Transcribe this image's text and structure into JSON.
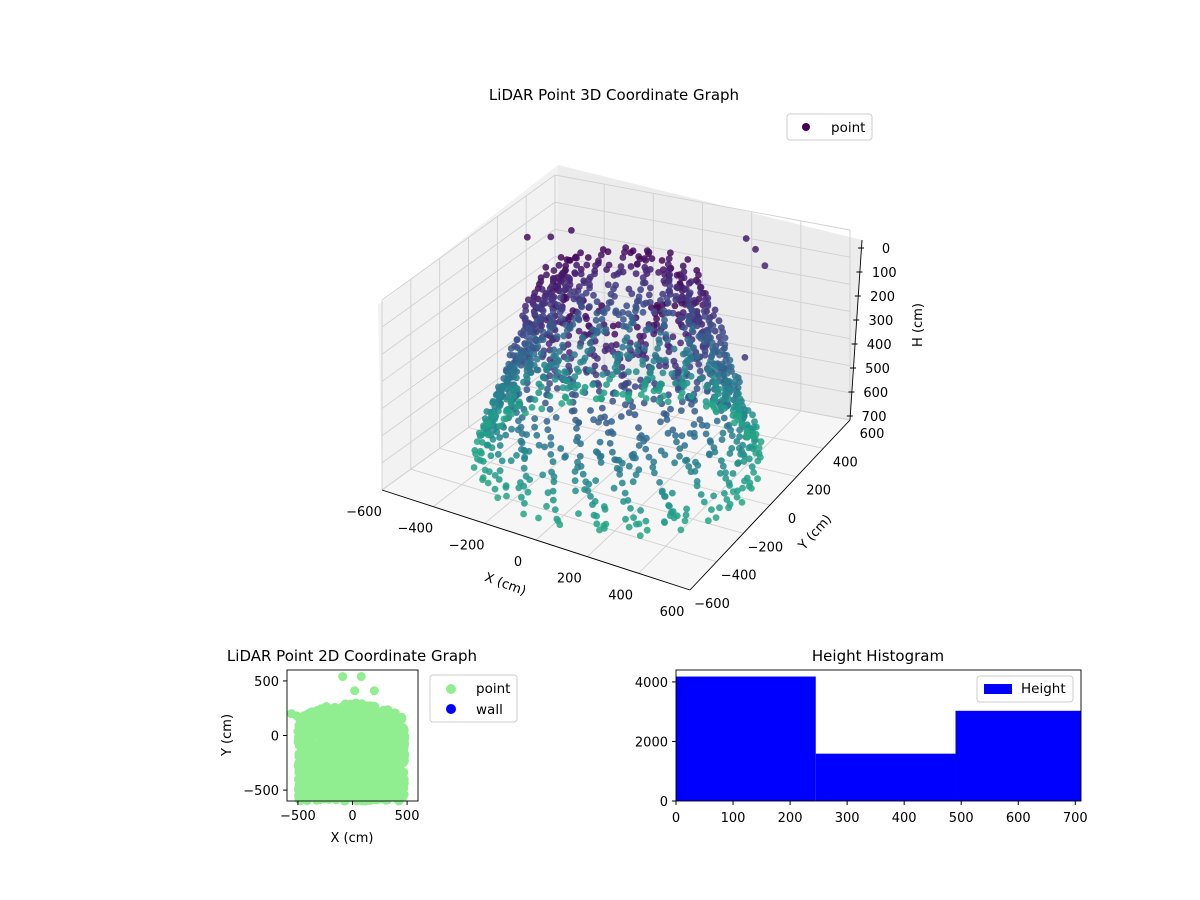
{
  "chart_data": [
    {
      "type": "scatter3d",
      "title": "LiDAR Point 3D Coordinate Graph",
      "xlabel": "X (cm)",
      "ylabel": "Y (cm)",
      "zlabel": "H (cm)",
      "xlim": [
        -600,
        600
      ],
      "ylim": [
        -600,
        600
      ],
      "zlim": [
        700,
        0
      ],
      "x_ticks": [
        "−600",
        "−400",
        "−200",
        "0",
        "200",
        "400",
        "600"
      ],
      "y_ticks": [
        "−600",
        "−400",
        "−200",
        "0",
        "200",
        "400",
        "600"
      ],
      "z_ticks": [
        "0",
        "100",
        "200",
        "300",
        "400",
        "500",
        "600",
        "700"
      ],
      "legend": {
        "entries": [
          {
            "label": "point",
            "color": "#440154"
          }
        ],
        "placement": "upper-right"
      },
      "colormap": "viridis",
      "grid": true,
      "series": [
        {
          "name": "point",
          "description_shape": "dense ring of points forming a dome-like wall around the origin, radius ~500 cm, heights 0-700 cm",
          "points": [
            [
              -480,
              200,
              50
            ],
            [
              -420,
              260,
              60
            ],
            [
              -360,
              300,
              40
            ],
            [
              200,
              560,
              80
            ],
            [
              260,
              520,
              90
            ],
            [
              320,
              480,
              120
            ],
            [
              500,
              0,
              180
            ]
          ]
        }
      ]
    },
    {
      "type": "scatter",
      "title": "LiDAR Point 2D Coordinate Graph",
      "xlabel": "X (cm)",
      "ylabel": "Y (cm)",
      "xlim": [
        -600,
        600
      ],
      "ylim": [
        -600,
        600
      ],
      "x_ticks": [
        "−500",
        "0",
        "500"
      ],
      "y_ticks": [
        "−500",
        "0",
        "500"
      ],
      "legend": {
        "entries": [
          {
            "label": "point",
            "color": "#90ee90"
          },
          {
            "label": "wall",
            "color": "#0000ff"
          }
        ],
        "placement": "outside-right"
      },
      "series": [
        {
          "name": "point",
          "color": "#90ee90",
          "description_shape": "filled region spanning x -500..500, y -600..300 with a rounded top",
          "points": [
            [
              -90,
              540
            ],
            [
              80,
              540
            ],
            [
              20,
              410
            ],
            [
              200,
              410
            ],
            [
              -560,
              200
            ],
            [
              -510,
              180
            ]
          ]
        },
        {
          "name": "wall",
          "color": "#0000ff",
          "points": []
        }
      ]
    },
    {
      "type": "bar",
      "title": "Height Histogram",
      "xlim": [
        0,
        710
      ],
      "ylim": [
        0,
        4400
      ],
      "x_ticks": [
        "0",
        "100",
        "200",
        "300",
        "400",
        "500",
        "600",
        "700"
      ],
      "y_ticks": [
        "0",
        "2000",
        "4000"
      ],
      "legend": {
        "entries": [
          {
            "label": "Height",
            "color": "#0000ff"
          }
        ],
        "placement": "upper-right"
      },
      "series": [
        {
          "name": "Height",
          "color": "#0000ff",
          "bins": [
            [
              0,
              245
            ],
            [
              245,
              490
            ],
            [
              490,
              710
            ]
          ],
          "values": [
            4180,
            1590,
            3030
          ]
        }
      ]
    }
  ]
}
